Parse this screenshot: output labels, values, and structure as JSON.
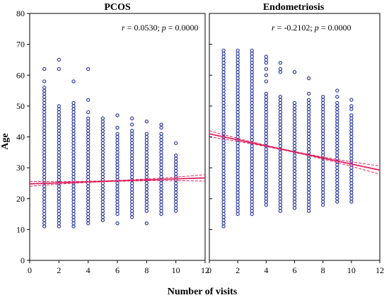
{
  "chart_data": {
    "type": "scatter",
    "xlabel": "Number of visits",
    "ylabel": "Age",
    "xlim": [
      0,
      12
    ],
    "ylim": [
      0,
      80
    ],
    "xticks": [
      0,
      2,
      4,
      6,
      8,
      10,
      12
    ],
    "yticks": [
      0,
      10,
      20,
      30,
      40,
      50,
      60,
      70,
      80
    ],
    "colors": {
      "points": "#1f2f9e",
      "fit": "#e0245e"
    },
    "shared_y_axis": true,
    "panels": [
      {
        "title": "PCOS",
        "annotation": "r = 0.0530; p = 0.0000",
        "annotation_parts": {
          "r_sym": "r",
          "r_val": " = 0.0530; ",
          "p_sym": "p",
          "p_val": " = 0.0000"
        },
        "fit": {
          "intercept": 24.8,
          "slope": 0.16,
          "ci_spread_at_x12": 0.9
        },
        "points_by_visit": [
          {
            "x": 1,
            "y_min": 11,
            "y_max": 56,
            "extra": [
              58,
              62
            ]
          },
          {
            "x": 2,
            "y_min": 11,
            "y_max": 50,
            "extra": [
              62,
              65
            ]
          },
          {
            "x": 3,
            "y_min": 11,
            "y_max": 51,
            "extra": [
              58
            ]
          },
          {
            "x": 4,
            "y_min": 12,
            "y_max": 46,
            "extra": [
              48,
              52,
              62
            ]
          },
          {
            "x": 5,
            "y_min": 13,
            "y_max": 46,
            "extra": []
          },
          {
            "x": 6,
            "y_min": 15,
            "y_max": 41,
            "extra": [
              12,
              43,
              47
            ]
          },
          {
            "x": 7,
            "y_min": 14,
            "y_max": 42,
            "extra": [
              44,
              46
            ]
          },
          {
            "x": 8,
            "y_min": 16,
            "y_max": 41,
            "extra": [
              12,
              45
            ]
          },
          {
            "x": 9,
            "y_min": 15,
            "y_max": 41,
            "extra": [
              43,
              44
            ]
          },
          {
            "x": 10,
            "y_min": 16,
            "y_max": 34,
            "extra": [
              38
            ]
          }
        ]
      },
      {
        "title": "Endometriosis",
        "annotation": "r = -0.2102; p = 0.0000",
        "annotation_parts": {
          "r_sym": "r",
          "r_val": " = -0.2102; ",
          "p_sym": "p",
          "p_val": " = 0.0000"
        },
        "fit": {
          "intercept": 41.0,
          "slope": -0.98,
          "ci_spread_at_x12": 1.2
        },
        "points_by_visit": [
          {
            "x": 1,
            "y_min": 11,
            "y_max": 68,
            "extra": []
          },
          {
            "x": 2,
            "y_min": 15,
            "y_max": 68,
            "extra": []
          },
          {
            "x": 3,
            "y_min": 15,
            "y_max": 68,
            "extra": []
          },
          {
            "x": 4,
            "y_min": 18,
            "y_max": 54,
            "extra": [
              58,
              60,
              62,
              64,
              65,
              66
            ]
          },
          {
            "x": 5,
            "y_min": 16,
            "y_max": 53,
            "extra": [
              61,
              62,
              64
            ]
          },
          {
            "x": 6,
            "y_min": 17,
            "y_max": 51,
            "extra": [
              61
            ]
          },
          {
            "x": 7,
            "y_min": 16,
            "y_max": 52,
            "extra": [
              54,
              59
            ]
          },
          {
            "x": 8,
            "y_min": 18,
            "y_max": 53,
            "extra": []
          },
          {
            "x": 9,
            "y_min": 19,
            "y_max": 51,
            "extra": [
              53,
              55
            ]
          },
          {
            "x": 10,
            "y_min": 19,
            "y_max": 47,
            "extra": [
              49,
              50,
              52
            ]
          }
        ]
      }
    ]
  }
}
